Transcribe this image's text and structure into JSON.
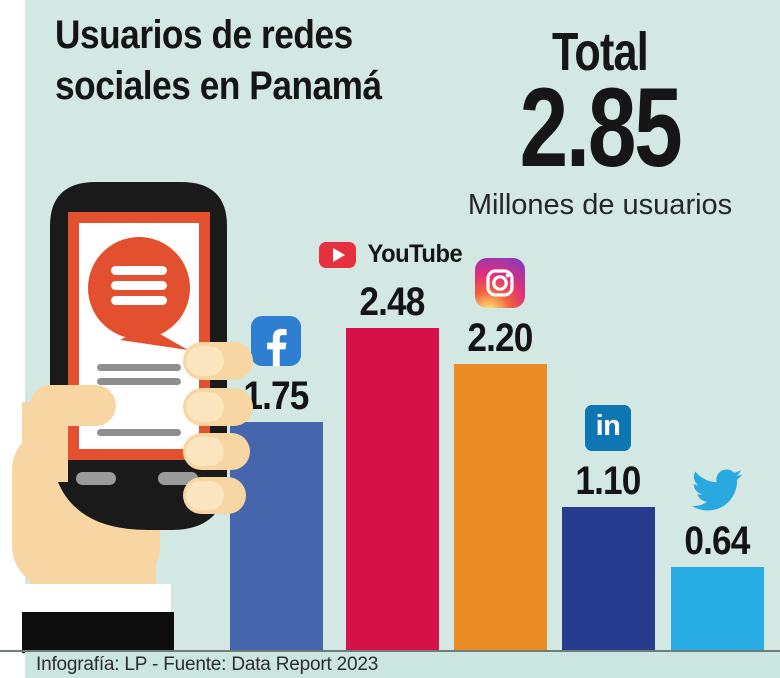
{
  "title": {
    "line1": "Usuarios de redes",
    "line2": "sociales en Panamá"
  },
  "total": {
    "label": "Total",
    "value": "2.85",
    "unit": "Millones de usuarios"
  },
  "footer": {
    "text": "Infografía: LP - Fuente: Data Report 2023"
  },
  "bars": [
    {
      "platform": "Facebook",
      "label": "1.75",
      "value": 1.75,
      "color": "#4565ad"
    },
    {
      "platform": "YouTube",
      "label": "2.48",
      "value": 2.48,
      "color": "#d6114a",
      "wordmark": "YouTube"
    },
    {
      "platform": "Instagram",
      "label": "2.20",
      "value": 2.2,
      "color": "#e98c25"
    },
    {
      "platform": "LinkedIn",
      "label": "1.10",
      "value": 1.1,
      "color": "#273c8f"
    },
    {
      "platform": "Twitter",
      "label": "0.64",
      "value": 0.64,
      "color": "#27ade3"
    }
  ],
  "icons": {
    "facebook_blue": "#2e7ed2",
    "youtube_red": "#e6303f",
    "linkedin_blue": "#0e76b2",
    "linkedin_text": "in",
    "twitter_blue": "#2aa9e0",
    "instagram_gradient": [
      "#fdda6f",
      "#f2603f",
      "#de2f7b",
      "#8a3ab9"
    ]
  },
  "colors": {
    "background": "#d3e7e3",
    "footer_band": "#cbe5e0",
    "left_margin": "#ffffff",
    "accent_red_orange": "#e2502f",
    "skin": "#f7d6a4",
    "text": "#151515"
  },
  "chart_data": {
    "type": "bar",
    "title": "Usuarios de redes sociales en Panamá",
    "categories": [
      "Facebook",
      "YouTube",
      "Instagram",
      "LinkedIn",
      "Twitter"
    ],
    "values": [
      1.75,
      2.48,
      2.2,
      1.1,
      0.64
    ],
    "value_labels": [
      "1.75",
      "2.48",
      "2.20",
      "1.10",
      "0.64"
    ],
    "bar_colors": [
      "#4565ad",
      "#d6114a",
      "#e98c25",
      "#273c8f",
      "#27ade3"
    ],
    "total": 2.85,
    "total_label": "Total 2.85",
    "unit": "Millones de usuarios",
    "xlabel": "",
    "ylabel": "Millones de usuarios",
    "ylim": [
      0,
      2.85
    ],
    "grid": false,
    "legend_position": "platform icons above each bar",
    "source": "Infografía: LP - Fuente: Data Report 2023"
  }
}
